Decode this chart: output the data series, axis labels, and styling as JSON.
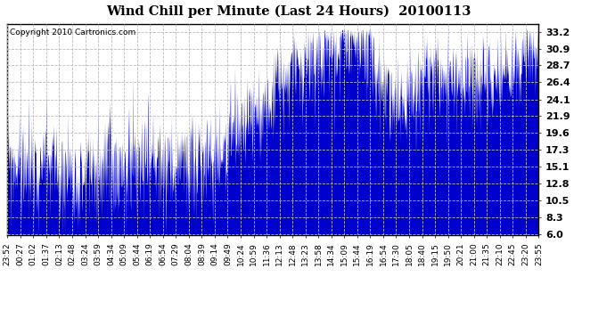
{
  "title": "Wind Chill per Minute (Last 24 Hours)  20100113",
  "copyright_text": "Copyright 2010 Cartronics.com",
  "line_color": "#0000cc",
  "fill_color": "#0000cc",
  "background_color": "#ffffff",
  "grid_color": "#bbbbbb",
  "yticks": [
    6.0,
    8.3,
    10.5,
    12.8,
    15.1,
    17.3,
    19.6,
    21.9,
    24.1,
    26.4,
    28.7,
    30.9,
    33.2
  ],
  "ylim": [
    5.8,
    34.2
  ],
  "xtick_labels": [
    "23:52",
    "00:27",
    "01:02",
    "01:37",
    "02:13",
    "02:48",
    "03:24",
    "03:59",
    "04:34",
    "05:09",
    "05:44",
    "06:19",
    "06:54",
    "07:29",
    "08:04",
    "08:39",
    "09:14",
    "09:49",
    "10:24",
    "10:59",
    "11:36",
    "12:13",
    "12:48",
    "13:23",
    "13:58",
    "14:34",
    "15:09",
    "15:44",
    "16:19",
    "16:54",
    "17:30",
    "18:05",
    "18:40",
    "19:15",
    "19:50",
    "20:21",
    "21:00",
    "21:35",
    "22:10",
    "22:45",
    "23:20",
    "23:55"
  ],
  "n_points": 1440,
  "seed": 99
}
